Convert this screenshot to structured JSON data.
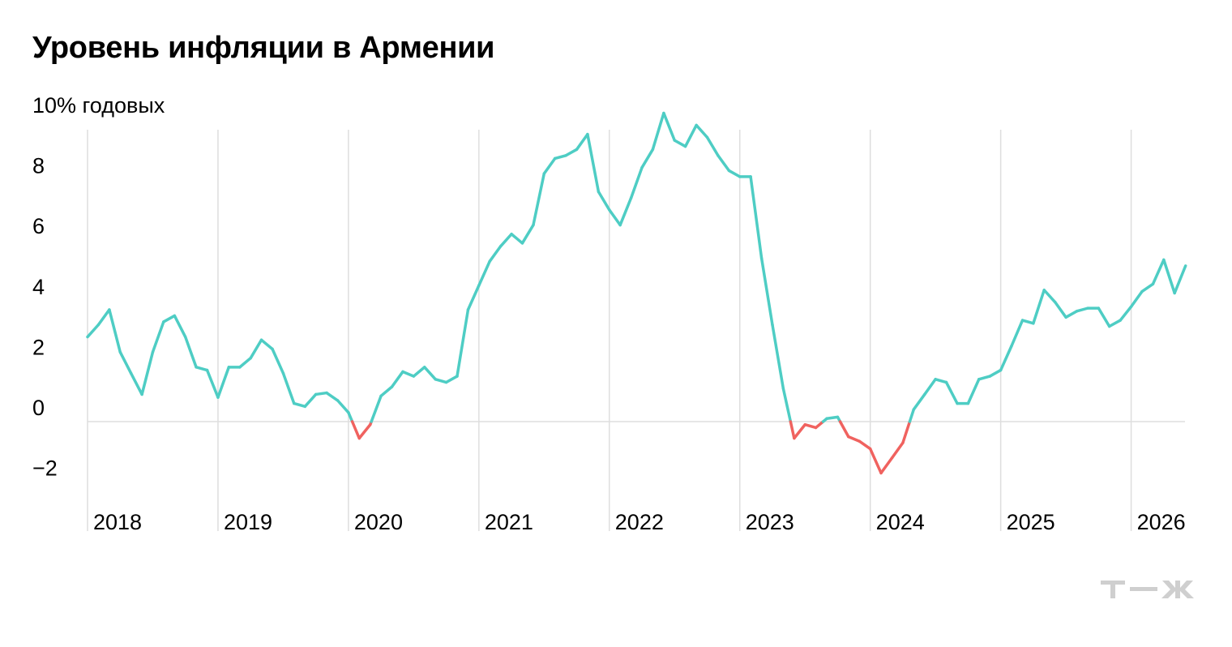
{
  "title": "Уровень инфляции в Армении",
  "logo_text": "Т—Ж",
  "colors": {
    "positive": "#4ecdc4",
    "negative": "#f0625f",
    "grid": "#dedede",
    "logo": "#cfcfcf"
  },
  "chart_data": {
    "type": "line",
    "title": "Уровень инфляции в Армении",
    "unit_label": "10% годовых",
    "ylim": [
      -3,
      10
    ],
    "yticks": [
      -2,
      0,
      2,
      4,
      6,
      8,
      10
    ],
    "ytick_labels": [
      "−2",
      "0",
      "2",
      "4",
      "6",
      "8",
      "10% годовых"
    ],
    "xlim": [
      2018.0,
      2026.45
    ],
    "years": [
      "2018",
      "2019",
      "2020",
      "2021",
      "2022",
      "2023",
      "2024",
      "2025",
      "2026"
    ],
    "grid": "vertical lines at year starts, horizontal line at 0",
    "color_rule": "teal when value ≥ 0, red when value < 0",
    "series": [
      {
        "x": [
          2018.0,
          2018.083,
          2018.167,
          2018.25,
          2018.333,
          2018.417,
          2018.5,
          2018.583,
          2018.667,
          2018.75,
          2018.833,
          2018.917,
          2019.0,
          2019.083,
          2019.167,
          2019.25,
          2019.333,
          2019.417,
          2019.5,
          2019.583,
          2019.667,
          2019.75,
          2019.833,
          2019.917,
          2020.0,
          2020.083,
          2020.167,
          2020.25,
          2020.333,
          2020.417,
          2020.5,
          2020.583,
          2020.667,
          2020.75,
          2020.833,
          2020.917,
          2021.0,
          2021.083,
          2021.167,
          2021.25,
          2021.333,
          2021.417,
          2021.5,
          2021.583,
          2021.667,
          2021.75,
          2021.833,
          2021.917,
          2022.0,
          2022.083,
          2022.167,
          2022.25,
          2022.333,
          2022.417,
          2022.5,
          2022.583,
          2022.667,
          2022.75,
          2022.833,
          2022.917,
          2023.0,
          2023.083,
          2023.167,
          2023.25,
          2023.333,
          2023.417,
          2023.5,
          2023.583,
          2023.667,
          2023.75,
          2023.833,
          2023.917,
          2024.0,
          2024.083,
          2024.167,
          2024.25,
          2024.333,
          2024.417,
          2024.5,
          2024.583,
          2024.667,
          2024.75,
          2024.833,
          2024.917,
          2025.0,
          2025.083,
          2025.167,
          2025.25,
          2025.333,
          2025.417,
          2025.5,
          2025.583,
          2025.667,
          2025.75,
          2025.833,
          2025.917,
          2026.0,
          2026.083,
          2026.167,
          2026.25,
          2026.333,
          2026.417
        ],
        "values": [
          2.8,
          3.2,
          3.7,
          2.3,
          1.6,
          0.9,
          2.3,
          3.3,
          3.5,
          2.8,
          1.8,
          1.7,
          0.8,
          1.8,
          1.8,
          2.1,
          2.7,
          2.4,
          1.6,
          0.6,
          0.5,
          0.9,
          0.95,
          0.7,
          0.3,
          -0.55,
          -0.1,
          0.85,
          1.15,
          1.65,
          1.5,
          1.8,
          1.4,
          1.3,
          1.5,
          3.7,
          4.5,
          5.3,
          5.8,
          6.2,
          5.9,
          6.5,
          8.2,
          8.7,
          8.8,
          9.0,
          9.5,
          7.6,
          7.0,
          6.5,
          7.4,
          8.4,
          9.0,
          10.2,
          9.3,
          9.1,
          9.8,
          9.4,
          8.8,
          8.3,
          8.1,
          8.1,
          5.4,
          3.2,
          1.1,
          -0.55,
          -0.1,
          -0.2,
          0.1,
          0.15,
          -0.5,
          -0.65,
          -0.9,
          -1.7,
          -1.2,
          -0.7,
          0.4,
          0.9,
          1.4,
          1.3,
          0.6,
          0.6,
          1.4,
          1.5,
          1.7,
          2.5,
          3.35,
          3.25,
          4.35,
          3.95,
          3.45,
          3.65,
          3.75,
          3.75,
          3.15,
          3.35,
          3.8,
          4.3,
          4.55,
          5.35,
          4.25,
          5.15
        ]
      }
    ]
  }
}
